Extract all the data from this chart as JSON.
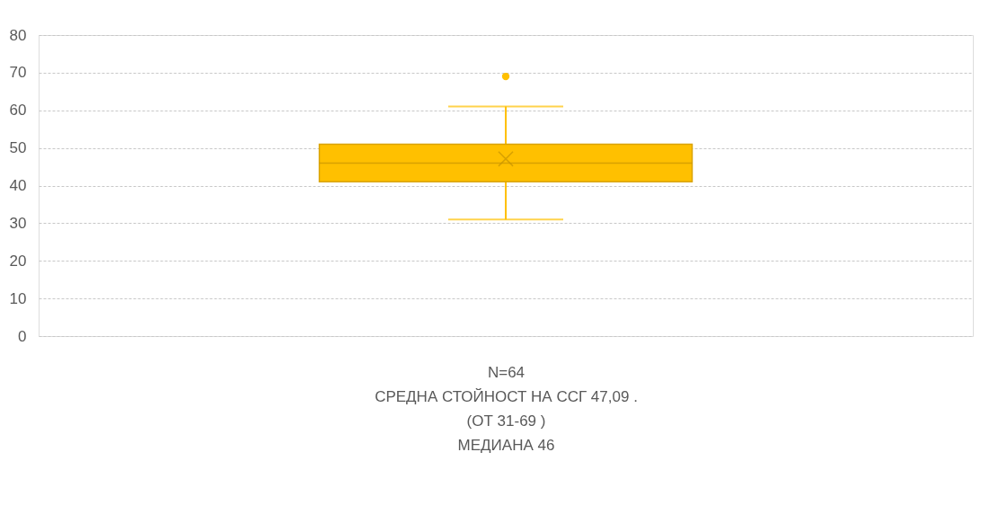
{
  "chart_data": {
    "type": "box",
    "categories": [
      null
    ],
    "color": "#ffc000",
    "boxes": [
      {
        "low": 31,
        "q1": 41,
        "median": 46,
        "q3": 51,
        "high": 61,
        "mean": 47.09,
        "outliers": [
          69
        ]
      }
    ],
    "ylim": [
      0,
      80
    ],
    "yticks": [
      0,
      10,
      20,
      30,
      40,
      50,
      60,
      70,
      80
    ],
    "grid": "y",
    "xlabel": "N=64",
    "annotations": [
      "СРЕДНА СТОЙНОСТ НА ССГ 47,09 .",
      "(ОТ 31-69 )",
      "МЕДИАНА 46"
    ]
  }
}
